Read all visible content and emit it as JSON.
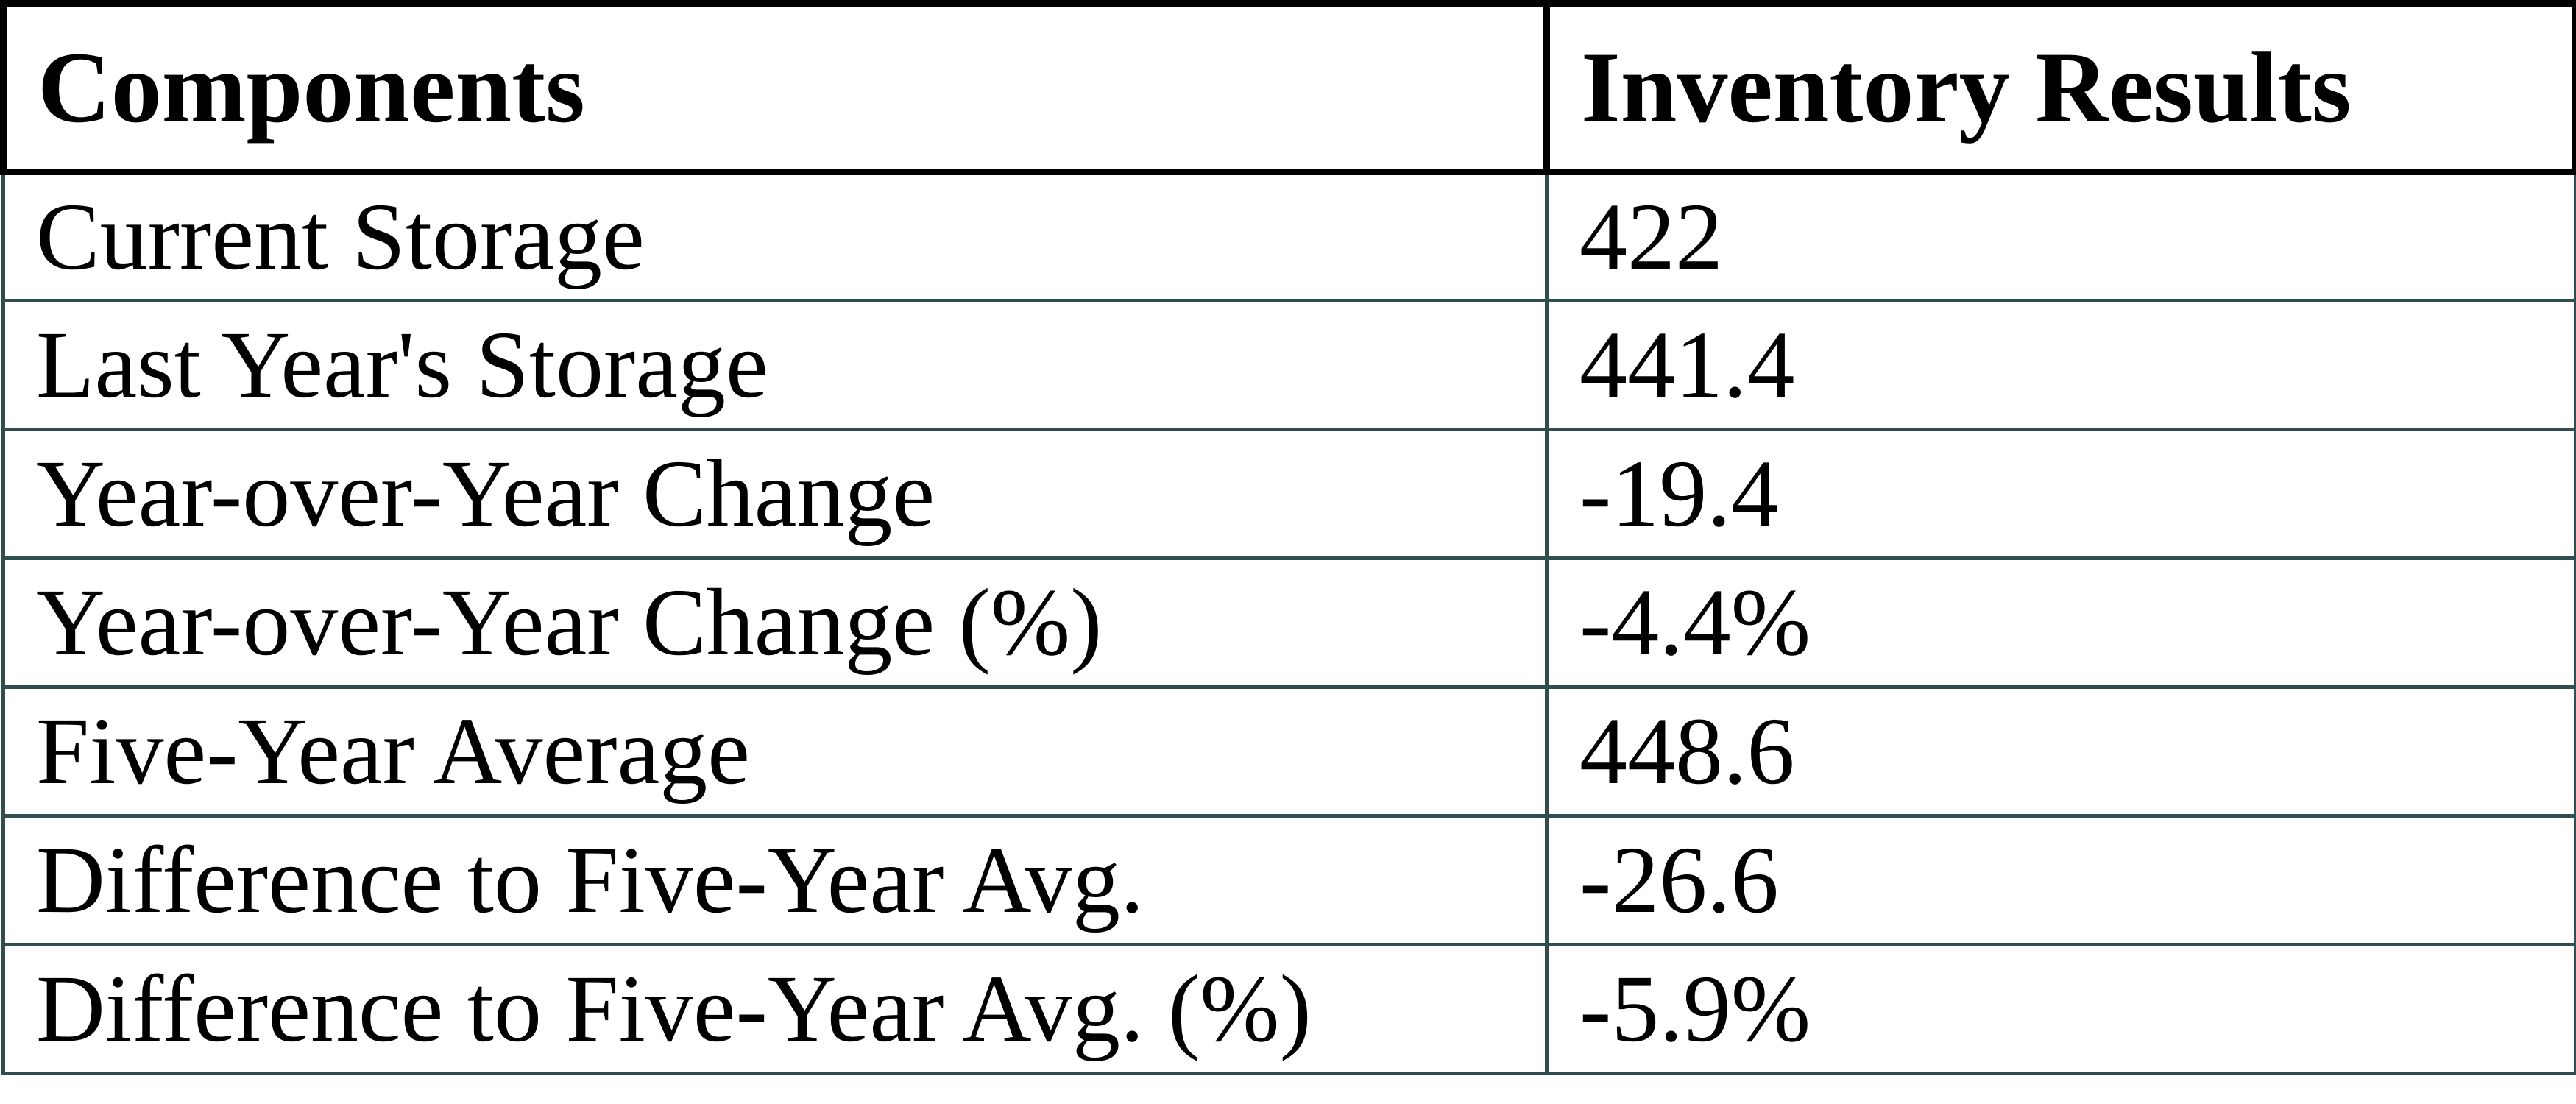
{
  "colors": {
    "header-border": "#000000",
    "body-border": "#2F4F4F",
    "text": "#000000",
    "background": "#FFFFFF"
  },
  "table": {
    "columns": [
      "Components",
      "Inventory Results"
    ],
    "rows": [
      {
        "label": "Current Storage",
        "value": "422"
      },
      {
        "label": "Last Year's Storage",
        "value": "441.4"
      },
      {
        "label": "Year-over-Year Change",
        "value": "-19.4"
      },
      {
        "label": "Year-over-Year Change (%)",
        "value": "-4.4%"
      },
      {
        "label": "Five-Year Average",
        "value": "448.6"
      },
      {
        "label": "Difference to Five-Year Avg.",
        "value": "-26.6"
      },
      {
        "label": "Difference to Five-Year Avg. (%)",
        "value": "-5.9%"
      }
    ]
  },
  "chart_data": {
    "type": "table",
    "title": "",
    "columns": [
      "Components",
      "Inventory Results"
    ],
    "rows": [
      [
        "Current Storage",
        "422"
      ],
      [
        "Last Year's Storage",
        "441.4"
      ],
      [
        "Year-over-Year Change",
        "-19.4"
      ],
      [
        "Year-over-Year Change (%)",
        "-4.4%"
      ],
      [
        "Five-Year Average",
        "448.6"
      ],
      [
        "Difference to Five-Year Avg.",
        "-26.6"
      ],
      [
        "Difference to Five-Year Avg. (%)",
        "-5.9%"
      ]
    ]
  }
}
